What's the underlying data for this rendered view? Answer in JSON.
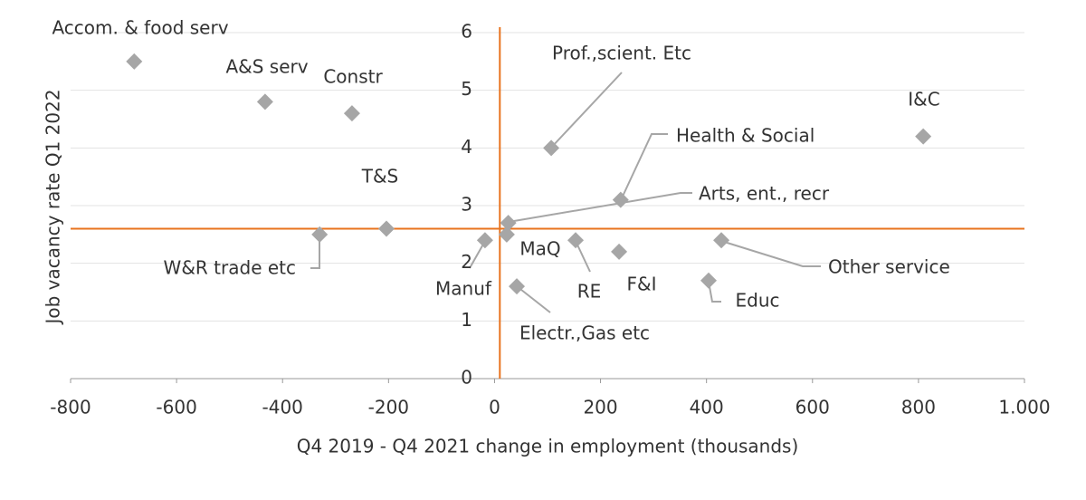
{
  "chart_data": {
    "type": "scatter",
    "x_label": "Q4 2019 - Q4 2021 change in employment (thousands)",
    "y_label": "Job vacancy rate Q1 2022",
    "labels": [
      "Accom. & food serv",
      "A&S serv",
      "Constr",
      "T&S",
      "W&R trade etc",
      "Manuf",
      "MaQ",
      "RE",
      "F&I",
      "Other service",
      "Educ",
      "Electr.,Gas etc",
      "Arts, ent., recr",
      "Health & Social",
      "Prof.,scient. Etc",
      "I&C"
    ],
    "x": [
      -680,
      -433,
      -269,
      -204,
      -330,
      -18,
      23,
      153,
      235,
      428,
      404,
      42,
      26,
      238,
      107,
      809
    ],
    "values": [
      5.5,
      4.8,
      4.6,
      2.6,
      2.5,
      2.4,
      2.5,
      2.4,
      2.2,
      2.4,
      1.7,
      1.6,
      2.7,
      3.1,
      4.0,
      4.2
    ],
    "color": "#a6a6a6",
    "reference_lines": {
      "x": 10,
      "y": 2.6,
      "color": "#e8731e"
    },
    "xlim": [
      -800,
      1000
    ],
    "xticks": [
      -800,
      -600,
      -400,
      -200,
      0,
      200,
      400,
      600,
      800,
      {
        "value": 1000,
        "label": "1.000"
      }
    ],
    "ylim": [
      0,
      6
    ],
    "yticks": [
      0,
      1,
      2,
      3,
      4,
      5,
      6
    ],
    "grid": true
  }
}
